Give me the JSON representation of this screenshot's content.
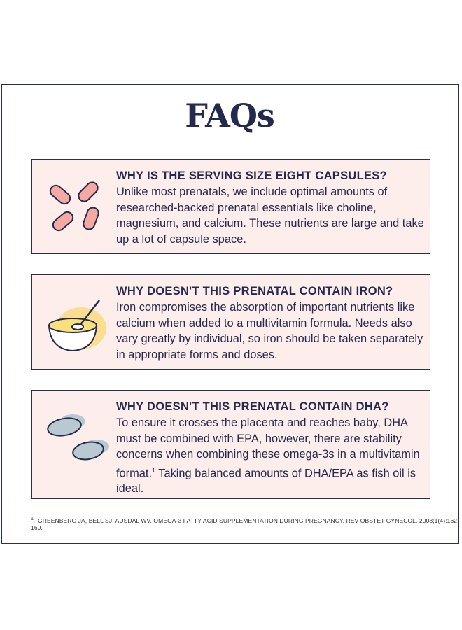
{
  "header": {
    "title": "FAQs"
  },
  "faqs": [
    {
      "question": "WHY IS THE SERVING SIZE EIGHT CAPSULES?",
      "answer": "Unlike most prenatals, we include optimal amounts of researched-backed prenatal essentials like choline, magnesium, and calcium. These nutrients are large and take up a lot of capsule space."
    },
    {
      "question": "WHY DOESN'T THIS PRENATAL CONTAIN IRON?",
      "answer": "Iron compromises the absorption of important nutrients like calcium when added to a multivitamin formula. Needs also vary greatly by individual, so iron should be taken separately in appropriate forms and doses."
    },
    {
      "question": "WHY DOESN'T THIS PRENATAL CONTAIN DHA?",
      "answer": "To ensure it crosses the placenta and reaches baby, DHA must be combined with EPA, however, there are stability concerns when combining these omega-3s in a multivitamin format.",
      "footnote_marker": "1",
      "answer_after": " Taking balanced amounts of DHA/EPA as fish oil is ideal."
    }
  ],
  "footnote": {
    "marker": "1",
    "text": "GREENBERG JA, BELL SJ, AUSDAL WV. OMEGA-3 FATTY ACID SUPPLEMENTATION DURING PREGNANCY. REV OBSTET GYNECOL. 2008;1(4):162-169."
  }
}
